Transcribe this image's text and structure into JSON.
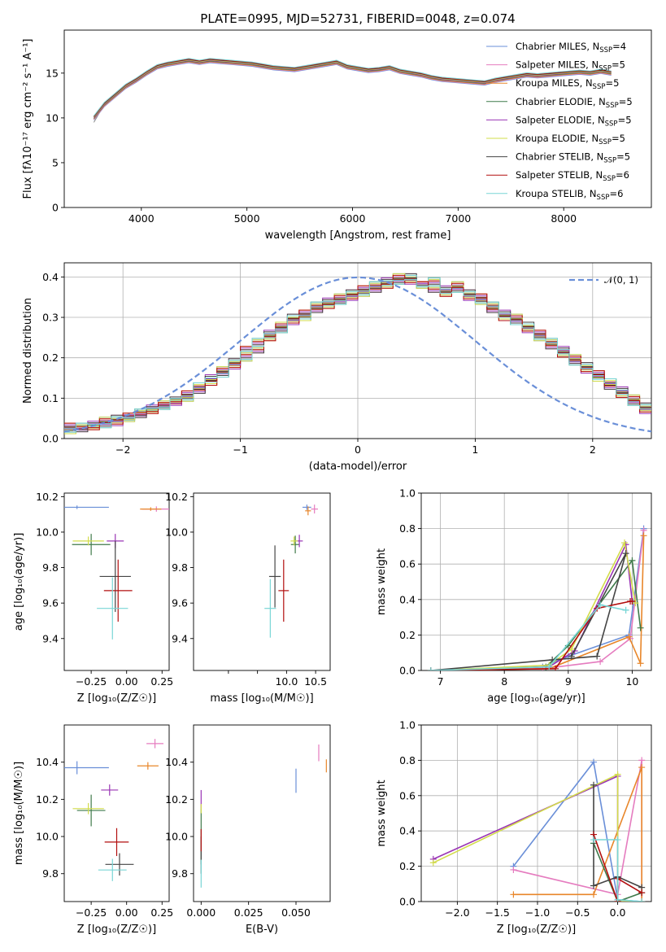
{
  "series_colors": [
    "#6a8fd8",
    "#e57cbf",
    "#e8862a",
    "#3f7a4a",
    "#9a35b5",
    "#d2dc4a",
    "#444444",
    "#b20e0e",
    "#79d6d6"
  ],
  "chart_data": [
    {
      "type": "line",
      "title": "PLATE=0995, MJD=52731, FIBERID=0048, z=0.074",
      "xlabel": "wavelength [Angstrom, rest frame]",
      "ylabel": "Flux [fλ10⁻¹⁷ erg cm⁻² s⁻¹ A⁻¹]",
      "xlim": [
        3270,
        8830
      ],
      "ylim": [
        0,
        19.8
      ],
      "xticks": [
        4000,
        5000,
        6000,
        7000,
        8000
      ],
      "yticks": [
        0,
        5,
        10,
        15
      ],
      "grid": false,
      "legend": "top-right",
      "data_series_name": "",
      "data_x": [
        3550,
        3650,
        3750,
        3850,
        3950,
        4050,
        4150,
        4250,
        4350,
        4450,
        4550,
        4650,
        4750,
        4850,
        4950,
        5050,
        5150,
        5250,
        5350,
        5450,
        5550,
        5650,
        5750,
        5850,
        5950,
        6050,
        6150,
        6250,
        6350,
        6450,
        6550,
        6650,
        6750,
        6850,
        6950,
        7050,
        7150,
        7250,
        7350,
        7450,
        7550,
        7650,
        7750,
        7850,
        7950,
        8050,
        8150,
        8250,
        8350,
        8450
      ],
      "data_y": [
        9.5,
        11.5,
        12.5,
        13.5,
        14,
        15,
        15.8,
        16,
        16.2,
        16.5,
        16.3,
        16.5,
        16.4,
        16.3,
        16.2,
        16.1,
        15.8,
        15.6,
        15.5,
        15.4,
        15.6,
        15.8,
        16,
        16.3,
        15.7,
        15.5,
        15.3,
        15.4,
        15.6,
        15.2,
        15,
        14.8,
        14.5,
        14.3,
        14.2,
        14.1,
        14,
        13.9,
        14.2,
        14.4,
        14.6,
        14.8,
        14.7,
        14.8,
        14.9,
        15,
        15.1,
        15,
        15.2,
        15
      ],
      "model_x": [
        3550,
        3650,
        3750,
        3850,
        3950,
        4050,
        4150,
        4250,
        4350,
        4450,
        4550,
        4650,
        4750,
        4850,
        4950,
        5050,
        5150,
        5250,
        5350,
        5450,
        5550,
        5650,
        5750,
        5850,
        5950,
        6050,
        6150,
        6250,
        6350,
        6450,
        6550,
        6650,
        6750,
        6850,
        6950,
        7050,
        7150,
        7250,
        7350,
        7450,
        7550,
        7650,
        7750,
        7850,
        7950,
        8050,
        8150,
        8250,
        8350,
        8450
      ],
      "model_y": [
        10,
        11.5,
        12.5,
        13.5,
        14.2,
        15,
        15.7,
        16,
        16.2,
        16.4,
        16.2,
        16.4,
        16.3,
        16.2,
        16.1,
        16,
        15.8,
        15.6,
        15.5,
        15.4,
        15.6,
        15.8,
        16,
        16.2,
        15.7,
        15.5,
        15.3,
        15.4,
        15.6,
        15.2,
        15,
        14.8,
        14.5,
        14.3,
        14.2,
        14.1,
        14,
        13.9,
        14.2,
        14.4,
        14.6,
        14.8,
        14.7,
        14.8,
        14.9,
        15,
        15.1,
        15,
        15.2,
        15
      ],
      "series": [
        {
          "name": "Chabrier MILES, N",
          "sub": "SSP",
          "suffix": "=4"
        },
        {
          "name": "Salpeter MILES, N",
          "sub": "SSP",
          "suffix": "=5"
        },
        {
          "name": "Kroupa MILES, N",
          "sub": "SSP",
          "suffix": "=5"
        },
        {
          "name": "Chabrier ELODIE, N",
          "sub": "SSP",
          "suffix": "=5"
        },
        {
          "name": "Salpeter ELODIE, N",
          "sub": "SSP",
          "suffix": "=5"
        },
        {
          "name": "Kroupa ELODIE, N",
          "sub": "SSP",
          "suffix": "=5"
        },
        {
          "name": "Chabrier STELIB, N",
          "sub": "SSP",
          "suffix": "=5"
        },
        {
          "name": "Salpeter STELIB, N",
          "sub": "SSP",
          "suffix": "=6"
        },
        {
          "name": "Kroupa STELIB, N",
          "sub": "SSP",
          "suffix": "=6"
        }
      ]
    },
    {
      "type": "histogram",
      "title": "",
      "xlabel": "(data-model)/error",
      "ylabel": "Normed distribution",
      "xlim": [
        -2.5,
        2.5
      ],
      "ylim": [
        0,
        0.435
      ],
      "xticks": [
        -2,
        -1,
        0,
        1,
        2
      ],
      "yticks": [
        0.0,
        0.1,
        0.2,
        0.3,
        0.4
      ],
      "grid": true,
      "legend": "top-right",
      "reference_curve": {
        "name": "𝒩(0, 1)",
        "type": "gaussian",
        "mean": 0,
        "sigma": 1
      },
      "bin_width": 0.1,
      "bin_start": -2.5,
      "histograms": [
        [
          0.02,
          0.025,
          0.03,
          0.035,
          0.04,
          0.05,
          0.06,
          0.07,
          0.08,
          0.09,
          0.1,
          0.12,
          0.14,
          0.16,
          0.18,
          0.2,
          0.22,
          0.25,
          0.27,
          0.29,
          0.3,
          0.32,
          0.33,
          0.34,
          0.35,
          0.36,
          0.37,
          0.38,
          0.39,
          0.4,
          0.38,
          0.39,
          0.37,
          0.38,
          0.36,
          0.35,
          0.33,
          0.31,
          0.3,
          0.28,
          0.26,
          0.24,
          0.22,
          0.2,
          0.18,
          0.16,
          0.14,
          0.12,
          0.1,
          0.08
        ],
        [
          0.03,
          0.03,
          0.035,
          0.045,
          0.05,
          0.055,
          0.065,
          0.075,
          0.085,
          0.095,
          0.11,
          0.13,
          0.15,
          0.17,
          0.19,
          0.22,
          0.24,
          0.26,
          0.28,
          0.3,
          0.31,
          0.33,
          0.34,
          0.35,
          0.36,
          0.37,
          0.38,
          0.39,
          0.4,
          0.39,
          0.38,
          0.37,
          0.36,
          0.37,
          0.35,
          0.34,
          0.32,
          0.3,
          0.29,
          0.27,
          0.25,
          0.23,
          0.21,
          0.19,
          0.17,
          0.15,
          0.13,
          0.11,
          0.09,
          0.07
        ]
      ]
    },
    {
      "type": "scatter",
      "title": "",
      "xlabel": "Z [log₁₀(Z/Z☉)]",
      "ylabel": "age  [log₁₀(age/yr)]",
      "xlim": [
        -0.44,
        0.3
      ],
      "ylim": [
        9.22,
        10.22
      ],
      "xticks": [
        -0.25,
        0.0,
        0.25
      ],
      "xticklabels": [
        "−0.25",
        "0.00",
        "0.25"
      ],
      "yticks": [
        9.4,
        9.6,
        9.8,
        10.0,
        10.2
      ],
      "grid": false,
      "points": [
        {
          "x": -0.35,
          "y": 10.14,
          "xerr": 0.45,
          "yerr": 0.02
        },
        {
          "x": 0.21,
          "y": 10.13,
          "xerr": 0.2,
          "yerr": 0.03
        },
        {
          "x": 0.17,
          "y": 10.13,
          "xerr": 0.15,
          "yerr": 0.02
        },
        {
          "x": -0.25,
          "y": 9.93,
          "xerr": 0.27,
          "yerr": 0.12
        },
        {
          "x": -0.08,
          "y": 9.95,
          "xerr": 0.12,
          "yerr": 0.08
        },
        {
          "x": -0.27,
          "y": 9.95,
          "xerr": 0.22,
          "yerr": 0.05
        },
        {
          "x": -0.08,
          "y": 9.75,
          "xerr": 0.22,
          "yerr": 0.4
        },
        {
          "x": -0.06,
          "y": 9.67,
          "xerr": 0.2,
          "yerr": 0.35
        },
        {
          "x": -0.1,
          "y": 9.57,
          "xerr": 0.22,
          "yerr": 0.35
        }
      ]
    },
    {
      "type": "scatter",
      "title": "",
      "xlabel": "mass [log₁₀(M/M☉)]",
      "ylabel": "",
      "xlim": [
        8.4,
        10.75
      ],
      "ylim": [
        9.22,
        10.22
      ],
      "xticks": [
        9.0,
        9.5,
        10.0,
        10.5
      ],
      "xticklabels": [
        "",
        "",
        "10.0",
        "10.5"
      ],
      "yticks": [
        9.4,
        9.6,
        9.8,
        10.0,
        10.2
      ],
      "grid": false,
      "points": [
        {
          "x": 10.35,
          "y": 10.14,
          "xerr": 0.15,
          "yerr": 0.03
        },
        {
          "x": 10.48,
          "y": 10.13,
          "xerr": 0.12,
          "yerr": 0.05
        },
        {
          "x": 10.37,
          "y": 10.12,
          "xerr": 0.1,
          "yerr": 0.05
        },
        {
          "x": 10.15,
          "y": 9.93,
          "xerr": 0.15,
          "yerr": 0.1
        },
        {
          "x": 10.22,
          "y": 9.95,
          "xerr": 0.12,
          "yerr": 0.07
        },
        {
          "x": 10.13,
          "y": 9.95,
          "xerr": 0.12,
          "yerr": 0.05
        },
        {
          "x": 9.8,
          "y": 9.75,
          "xerr": 0.2,
          "yerr": 0.35
        },
        {
          "x": 9.95,
          "y": 9.67,
          "xerr": 0.18,
          "yerr": 0.35
        },
        {
          "x": 9.72,
          "y": 9.57,
          "xerr": 0.2,
          "yerr": 0.33
        }
      ]
    },
    {
      "type": "line",
      "title": "",
      "xlabel": "age  [log₁₀(age/yr)]",
      "ylabel": "mass weight",
      "xlim": [
        6.7,
        10.3
      ],
      "ylim": [
        0,
        1.0
      ],
      "xticks": [
        7,
        8,
        9,
        10
      ],
      "yticks": [
        0.0,
        0.2,
        0.4,
        0.6,
        0.8,
        1.0
      ],
      "grid": true,
      "series": [
        {
          "x": [
            6.85,
            8.6,
            9.0,
            9.95,
            10.18
          ],
          "y": [
            0.0,
            0.02,
            0.08,
            0.2,
            0.8
          ]
        },
        {
          "x": [
            6.85,
            8.6,
            9.5,
            9.97,
            10.18
          ],
          "y": [
            0.0,
            0.01,
            0.05,
            0.18,
            0.79
          ]
        },
        {
          "x": [
            6.85,
            8.7,
            9.95,
            10.13,
            10.18
          ],
          "y": [
            0.0,
            0.01,
            0.19,
            0.04,
            0.76
          ]
        },
        {
          "x": [
            6.85,
            8.65,
            9.0,
            10.0,
            10.13
          ],
          "y": [
            0.0,
            0.02,
            0.14,
            0.62,
            0.24
          ]
        },
        {
          "x": [
            6.85,
            8.7,
            9.1,
            9.9,
            10.0
          ],
          "y": [
            0.0,
            0.02,
            0.11,
            0.71,
            0.39
          ]
        },
        {
          "x": [
            6.85,
            8.7,
            9.05,
            9.88,
            10.05
          ],
          "y": [
            0.0,
            0.03,
            0.12,
            0.72,
            0.38
          ]
        },
        {
          "x": [
            6.85,
            8.75,
            9.45,
            9.9,
            9.05
          ],
          "y": [
            0.0,
            0.06,
            0.08,
            0.66,
            0.08
          ]
        },
        {
          "x": [
            6.85,
            8.8,
            9.45,
            9.97,
            10.0
          ],
          "y": [
            0.0,
            0.01,
            0.35,
            0.39,
            0.39
          ]
        },
        {
          "x": [
            6.85,
            8.7,
            9.5,
            9.9,
            9.9
          ],
          "y": [
            0.0,
            0.02,
            0.37,
            0.34,
            0.34
          ]
        }
      ]
    },
    {
      "type": "scatter",
      "title": "",
      "xlabel": "Z [log₁₀(Z/Z☉)]",
      "ylabel": "mass [log₁₀(M/M☉)]",
      "xlim": [
        -0.44,
        0.3
      ],
      "ylim": [
        9.65,
        10.6
      ],
      "xticks": [
        -0.25,
        0.0,
        0.25
      ],
      "xticklabels": [
        "−0.25",
        "0.00",
        "0.25"
      ],
      "yticks": [
        9.8,
        10.0,
        10.2,
        10.4
      ],
      "grid": false,
      "points": [
        {
          "x": -0.35,
          "y": 10.37,
          "xerr": 0.45,
          "yerr": 0.07
        },
        {
          "x": 0.2,
          "y": 10.5,
          "xerr": 0.12,
          "yerr": 0.05
        },
        {
          "x": 0.15,
          "y": 10.38,
          "xerr": 0.15,
          "yerr": 0.04
        },
        {
          "x": -0.25,
          "y": 10.14,
          "xerr": 0.2,
          "yerr": 0.17
        },
        {
          "x": -0.12,
          "y": 10.25,
          "xerr": 0.12,
          "yerr": 0.06
        },
        {
          "x": -0.27,
          "y": 10.15,
          "xerr": 0.22,
          "yerr": 0.06
        },
        {
          "x": -0.05,
          "y": 9.85,
          "xerr": 0.2,
          "yerr": 0.12
        },
        {
          "x": -0.07,
          "y": 9.97,
          "xerr": 0.17,
          "yerr": 0.15
        },
        {
          "x": -0.1,
          "y": 9.82,
          "xerr": 0.2,
          "yerr": 0.12
        }
      ]
    },
    {
      "type": "scatter",
      "title": "",
      "xlabel": "E(B-V)",
      "ylabel": "",
      "xlim": [
        -0.004,
        0.068
      ],
      "ylim": [
        9.65,
        10.6
      ],
      "xticks": [
        0.0,
        0.025,
        0.05
      ],
      "xticklabels": [
        "0.000",
        "0.025",
        "0.050"
      ],
      "yticks": [
        9.8,
        10.0,
        10.2,
        10.4
      ],
      "grid": false,
      "points": [
        {
          "x": 0.05,
          "y": 10.3,
          "xerr": 0,
          "yerr": 0.13
        },
        {
          "x": 0.062,
          "y": 10.45,
          "xerr": 0,
          "yerr": 0.09
        },
        {
          "x": 0.066,
          "y": 10.38,
          "xerr": 0,
          "yerr": 0.07
        },
        {
          "x": 0.0,
          "y": 10.0,
          "xerr": 0,
          "yerr": 0.3
        },
        {
          "x": 0.0,
          "y": 10.2,
          "xerr": 0,
          "yerr": 0.1
        },
        {
          "x": 0.0,
          "y": 10.15,
          "xerr": 0,
          "yerr": 0.05
        },
        {
          "x": 0.0,
          "y": 9.9,
          "xerr": 0,
          "yerr": 0.2
        },
        {
          "x": 0.0,
          "y": 9.98,
          "xerr": 0,
          "yerr": 0.12
        },
        {
          "x": 0.0,
          "y": 9.8,
          "xerr": 0,
          "yerr": 0.15
        }
      ]
    },
    {
      "type": "line",
      "title": "",
      "xlabel": "Z [log₁₀(Z/Z☉)]",
      "ylabel": "mass weight",
      "xlim": [
        -2.45,
        0.42
      ],
      "ylim": [
        0,
        1.0
      ],
      "xticks": [
        -2.0,
        -1.5,
        -1.0,
        -0.5,
        0.0
      ],
      "xticklabels": [
        "−2.0",
        "−1.5",
        "−1.0",
        "−0.5",
        "0.0"
      ],
      "yticks": [
        0.0,
        0.2,
        0.4,
        0.6,
        0.8,
        1.0
      ],
      "grid": true,
      "series": [
        {
          "x": [
            -1.3,
            -0.3,
            0.0,
            0.3
          ],
          "y": [
            0.2,
            0.79,
            0.01,
            0.0
          ]
        },
        {
          "x": [
            -1.3,
            0.0,
            0.3,
            0.3
          ],
          "y": [
            0.18,
            0.04,
            0.8,
            0.0
          ]
        },
        {
          "x": [
            -1.3,
            -0.3,
            0.3,
            0.3
          ],
          "y": [
            0.04,
            0.04,
            0.76,
            0.0
          ]
        },
        {
          "x": [
            -0.3,
            0.0,
            0.3
          ],
          "y": [
            0.33,
            0.0,
            0.05
          ]
        },
        {
          "x": [
            -2.3,
            0.0,
            0.0,
            0.3
          ],
          "y": [
            0.24,
            0.71,
            0.0,
            0.0
          ]
        },
        {
          "x": [
            -2.3,
            0.0,
            0.0,
            0.3
          ],
          "y": [
            0.22,
            0.72,
            0.0,
            0.0
          ]
        },
        {
          "x": [
            -0.3,
            -0.3,
            0.0,
            0.3
          ],
          "y": [
            0.66,
            0.09,
            0.14,
            0.08
          ]
        },
        {
          "x": [
            -0.3,
            0.0,
            0.0,
            0.3
          ],
          "y": [
            0.38,
            0.0,
            0.13,
            0.05
          ]
        },
        {
          "x": [
            -0.3,
            0.0,
            0.0,
            0.3
          ],
          "y": [
            0.35,
            0.35,
            0.01,
            0.0
          ]
        }
      ]
    }
  ]
}
